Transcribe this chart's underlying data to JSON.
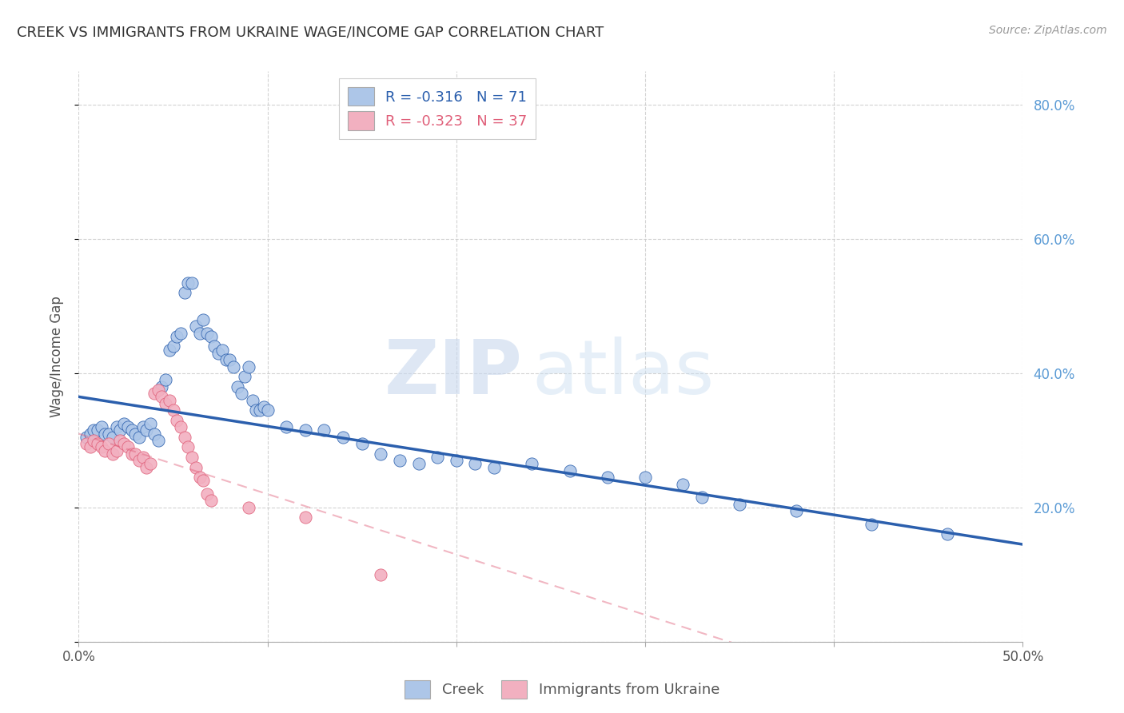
{
  "title": "CREEK VS IMMIGRANTS FROM UKRAINE WAGE/INCOME GAP CORRELATION CHART",
  "source": "Source: ZipAtlas.com",
  "ylabel": "Wage/Income Gap",
  "watermark_zip": "ZIP",
  "watermark_atlas": "atlas",
  "legend_entry1_r": "R = ",
  "legend_entry1_rv": "-0.316",
  "legend_entry1_n": "   N = ",
  "legend_entry1_nv": "71",
  "legend_entry2_r": "R = ",
  "legend_entry2_rv": "-0.323",
  "legend_entry2_n": "   N = ",
  "legend_entry2_nv": "37",
  "creek_color": "#adc6e8",
  "creek_line_color": "#2b5fad",
  "ukraine_color": "#f2b0c0",
  "ukraine_line_color": "#e0607a",
  "creek_points": [
    [
      0.004,
      0.305
    ],
    [
      0.006,
      0.31
    ],
    [
      0.008,
      0.315
    ],
    [
      0.01,
      0.315
    ],
    [
      0.012,
      0.32
    ],
    [
      0.014,
      0.31
    ],
    [
      0.016,
      0.31
    ],
    [
      0.018,
      0.305
    ],
    [
      0.02,
      0.32
    ],
    [
      0.022,
      0.315
    ],
    [
      0.024,
      0.325
    ],
    [
      0.026,
      0.32
    ],
    [
      0.028,
      0.315
    ],
    [
      0.03,
      0.31
    ],
    [
      0.032,
      0.305
    ],
    [
      0.034,
      0.32
    ],
    [
      0.036,
      0.315
    ],
    [
      0.038,
      0.325
    ],
    [
      0.04,
      0.31
    ],
    [
      0.042,
      0.3
    ],
    [
      0.044,
      0.38
    ],
    [
      0.046,
      0.39
    ],
    [
      0.048,
      0.435
    ],
    [
      0.05,
      0.44
    ],
    [
      0.052,
      0.455
    ],
    [
      0.054,
      0.46
    ],
    [
      0.056,
      0.52
    ],
    [
      0.058,
      0.535
    ],
    [
      0.06,
      0.535
    ],
    [
      0.062,
      0.47
    ],
    [
      0.064,
      0.46
    ],
    [
      0.066,
      0.48
    ],
    [
      0.068,
      0.46
    ],
    [
      0.07,
      0.455
    ],
    [
      0.072,
      0.44
    ],
    [
      0.074,
      0.43
    ],
    [
      0.076,
      0.435
    ],
    [
      0.078,
      0.42
    ],
    [
      0.08,
      0.42
    ],
    [
      0.082,
      0.41
    ],
    [
      0.084,
      0.38
    ],
    [
      0.086,
      0.37
    ],
    [
      0.088,
      0.395
    ],
    [
      0.09,
      0.41
    ],
    [
      0.092,
      0.36
    ],
    [
      0.094,
      0.345
    ],
    [
      0.096,
      0.345
    ],
    [
      0.098,
      0.35
    ],
    [
      0.1,
      0.345
    ],
    [
      0.11,
      0.32
    ],
    [
      0.12,
      0.315
    ],
    [
      0.13,
      0.315
    ],
    [
      0.14,
      0.305
    ],
    [
      0.15,
      0.295
    ],
    [
      0.16,
      0.28
    ],
    [
      0.17,
      0.27
    ],
    [
      0.18,
      0.265
    ],
    [
      0.19,
      0.275
    ],
    [
      0.2,
      0.27
    ],
    [
      0.21,
      0.265
    ],
    [
      0.22,
      0.26
    ],
    [
      0.24,
      0.265
    ],
    [
      0.26,
      0.255
    ],
    [
      0.28,
      0.245
    ],
    [
      0.3,
      0.245
    ],
    [
      0.32,
      0.235
    ],
    [
      0.33,
      0.215
    ],
    [
      0.35,
      0.205
    ],
    [
      0.38,
      0.195
    ],
    [
      0.42,
      0.175
    ],
    [
      0.46,
      0.16
    ]
  ],
  "ukraine_points": [
    [
      0.004,
      0.295
    ],
    [
      0.006,
      0.29
    ],
    [
      0.008,
      0.3
    ],
    [
      0.01,
      0.295
    ],
    [
      0.012,
      0.29
    ],
    [
      0.014,
      0.285
    ],
    [
      0.016,
      0.295
    ],
    [
      0.018,
      0.28
    ],
    [
      0.02,
      0.285
    ],
    [
      0.022,
      0.3
    ],
    [
      0.024,
      0.295
    ],
    [
      0.026,
      0.29
    ],
    [
      0.028,
      0.28
    ],
    [
      0.03,
      0.28
    ],
    [
      0.032,
      0.27
    ],
    [
      0.034,
      0.275
    ],
    [
      0.036,
      0.26
    ],
    [
      0.038,
      0.265
    ],
    [
      0.04,
      0.37
    ],
    [
      0.042,
      0.375
    ],
    [
      0.044,
      0.365
    ],
    [
      0.046,
      0.355
    ],
    [
      0.048,
      0.36
    ],
    [
      0.05,
      0.345
    ],
    [
      0.052,
      0.33
    ],
    [
      0.054,
      0.32
    ],
    [
      0.056,
      0.305
    ],
    [
      0.058,
      0.29
    ],
    [
      0.06,
      0.275
    ],
    [
      0.062,
      0.26
    ],
    [
      0.064,
      0.245
    ],
    [
      0.066,
      0.24
    ],
    [
      0.068,
      0.22
    ],
    [
      0.07,
      0.21
    ],
    [
      0.09,
      0.2
    ],
    [
      0.12,
      0.185
    ],
    [
      0.16,
      0.1
    ]
  ],
  "creek_intercept": 0.365,
  "creek_slope": -0.44,
  "ukraine_intercept": 0.31,
  "ukraine_slope": -0.9,
  "xlim": [
    0.0,
    0.5
  ],
  "ylim": [
    0.0,
    0.85
  ],
  "background_color": "#ffffff"
}
